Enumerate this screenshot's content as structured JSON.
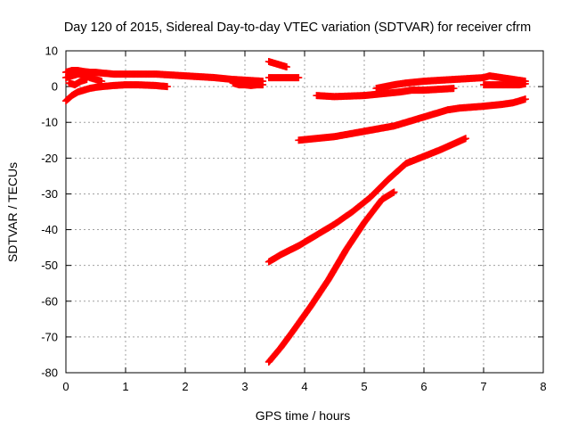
{
  "chart_data": {
    "type": "scatter",
    "title": "Day 120 of 2015, Sidereal Day-to-day VTEC variation (SDTVAR) for receiver cfrm",
    "xlabel": "GPS time / hours",
    "ylabel": "SDTVAR / TECUs",
    "xlim": [
      0,
      8
    ],
    "ylim": [
      -80,
      10
    ],
    "xticks": [
      0,
      1,
      2,
      3,
      4,
      5,
      6,
      7,
      8
    ],
    "yticks": [
      -80,
      -70,
      -60,
      -50,
      -40,
      -30,
      -20,
      -10,
      0,
      10
    ],
    "grid": true,
    "marker": "+",
    "marker_color": "#ff0000",
    "series": [
      {
        "x": [
          0.0,
          0.1,
          0.2,
          0.3,
          0.4,
          0.5,
          0.6,
          0.8,
          1.0,
          1.2,
          1.5,
          1.7
        ],
        "y": [
          -4.0,
          -2.5,
          -1.5,
          -1.0,
          -0.5,
          -0.2,
          0.0,
          0.3,
          0.5,
          0.5,
          0.3,
          0.0
        ]
      },
      {
        "x": [
          0.0,
          0.1,
          0.2,
          0.3,
          0.4,
          0.5,
          0.6
        ],
        "y": [
          2.5,
          3.0,
          3.5,
          3.5,
          2.5,
          2.0,
          1.5
        ]
      },
      {
        "x": [
          0.0,
          0.1,
          0.2,
          0.3,
          0.4,
          0.5,
          0.6,
          0.8,
          1.0,
          1.5,
          2.0,
          2.5,
          2.8,
          3.0,
          3.3
        ],
        "y": [
          4.0,
          4.5,
          4.5,
          4.2,
          4.0,
          4.0,
          3.8,
          3.5,
          3.5,
          3.5,
          3.0,
          2.5,
          2.0,
          1.8,
          1.5
        ]
      },
      {
        "x": [
          0.05,
          0.15,
          0.25,
          0.35
        ],
        "y": [
          1.0,
          0.5,
          1.5,
          2.0
        ]
      },
      {
        "x": [
          2.8,
          2.9,
          3.0,
          3.1,
          3.2,
          3.3
        ],
        "y": [
          1.0,
          0.5,
          0.5,
          0.3,
          0.5,
          0.5
        ]
      },
      {
        "x": [
          3.4,
          3.5,
          3.6,
          3.7
        ],
        "y": [
          7.0,
          6.5,
          6.0,
          5.5
        ]
      },
      {
        "x": [
          3.4,
          3.5,
          3.6,
          3.7,
          3.8,
          3.9
        ],
        "y": [
          2.5,
          2.5,
          2.5,
          2.5,
          2.5,
          2.5
        ]
      },
      {
        "x": [
          4.2,
          4.5,
          5.0,
          5.3,
          5.6,
          5.8,
          6.0,
          6.2,
          6.5
        ],
        "y": [
          -2.5,
          -2.8,
          -2.5,
          -2.0,
          -1.5,
          -1.0,
          -1.0,
          -0.8,
          -0.5
        ]
      },
      {
        "x": [
          5.2,
          5.5,
          5.7,
          6.0,
          6.5,
          7.0,
          7.1,
          7.3,
          7.5,
          7.7
        ],
        "y": [
          -0.5,
          0.5,
          1.0,
          1.5,
          2.0,
          2.5,
          3.0,
          2.5,
          2.0,
          1.5
        ]
      },
      {
        "x": [
          7.0,
          7.2,
          7.4,
          7.6,
          7.7
        ],
        "y": [
          0.5,
          0.5,
          0.5,
          0.5,
          0.8
        ]
      },
      {
        "x": [
          3.9,
          4.2,
          4.5,
          5.0,
          5.5,
          5.8,
          6.0,
          6.2,
          6.4,
          6.6,
          7.0,
          7.3,
          7.5,
          7.7
        ],
        "y": [
          -15.0,
          -14.5,
          -14.0,
          -12.5,
          -11.0,
          -9.5,
          -8.5,
          -7.5,
          -6.5,
          -6.0,
          -5.5,
          -5.0,
          -4.5,
          -3.5
        ]
      },
      {
        "x": [
          3.4,
          3.6,
          3.9,
          4.2,
          4.5,
          4.8,
          5.1,
          5.4,
          5.7,
          6.0,
          6.3,
          6.5,
          6.7
        ],
        "y": [
          -49.0,
          -47.0,
          -44.5,
          -41.5,
          -38.5,
          -35.0,
          -31.0,
          -26.0,
          -21.5,
          -19.5,
          -17.5,
          -16.0,
          -14.5
        ]
      },
      {
        "x": [
          3.4,
          3.6,
          3.8,
          4.1,
          4.4,
          4.7,
          5.0,
          5.3,
          5.5
        ],
        "y": [
          -77.0,
          -73.0,
          -68.5,
          -61.5,
          -54.0,
          -45.5,
          -38.0,
          -31.5,
          -29.5
        ]
      }
    ]
  }
}
